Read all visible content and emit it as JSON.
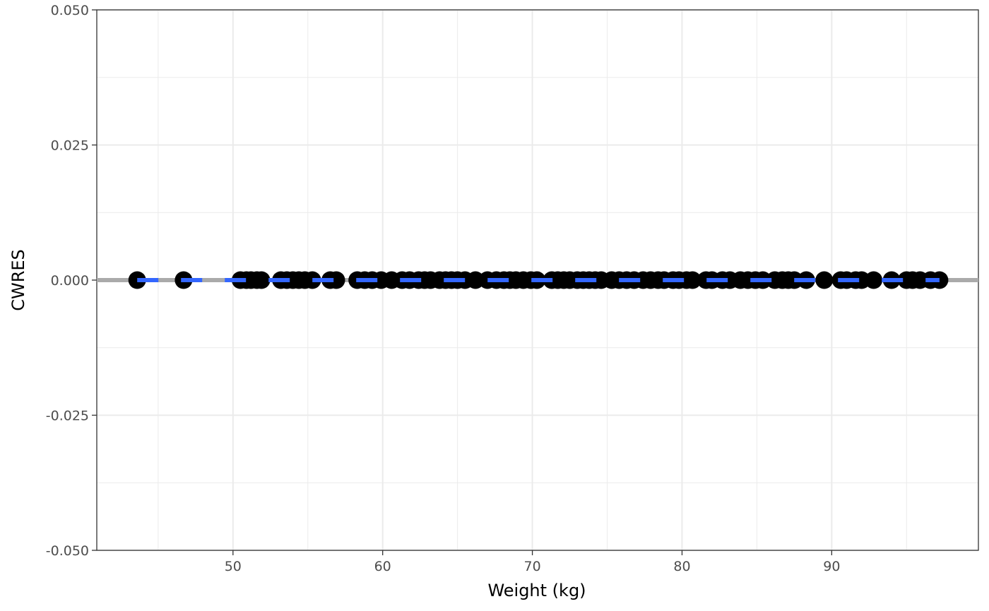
{
  "chart_data": {
    "type": "scatter",
    "xlabel": "Weight (kg)",
    "ylabel": "CWRES",
    "xlim": [
      40.9,
      99.8
    ],
    "ylim": [
      -0.05,
      0.05
    ],
    "x_ticks": [
      50,
      60,
      70,
      80,
      90
    ],
    "x_minor_ticks": [
      45,
      55,
      65,
      75,
      85,
      95
    ],
    "y_ticks": [
      -0.05,
      -0.025,
      0.0,
      0.025,
      0.05
    ],
    "y_tick_labels": [
      "-0.050",
      "-0.025",
      "0.000",
      "0.025",
      "0.050"
    ],
    "y_minor_ticks": [
      -0.0375,
      -0.0125,
      0.0125,
      0.0375
    ],
    "grid": true,
    "reference_line": {
      "y": 0,
      "color": "#aaaaaa"
    },
    "smooth_line": {
      "y": 0,
      "color": "#3366ff",
      "style": "dashed"
    },
    "point_color": "#000000",
    "x": [
      43.6,
      46.7,
      50.5,
      50.9,
      51.2,
      51.6,
      51.9,
      53.2,
      53.6,
      54.0,
      54.4,
      54.8,
      55.3,
      56.5,
      56.9,
      58.3,
      58.8,
      59.3,
      59.9,
      60.6,
      61.3,
      61.8,
      62.4,
      62.8,
      63.2,
      63.8,
      64.2,
      64.6,
      65.0,
      65.5,
      66.2,
      67.0,
      67.6,
      68.1,
      68.5,
      68.9,
      69.4,
      69.9,
      70.3,
      71.3,
      71.7,
      72.1,
      72.5,
      73.0,
      73.4,
      73.8,
      74.2,
      74.6,
      75.3,
      75.8,
      76.3,
      76.8,
      77.4,
      77.9,
      78.4,
      78.8,
      79.4,
      79.8,
      80.3,
      80.7,
      81.6,
      82.0,
      82.7,
      83.2,
      83.9,
      84.4,
      84.9,
      85.4,
      86.2,
      86.7,
      87.1,
      87.5,
      88.3,
      89.5,
      90.6,
      91.0,
      91.6,
      92.0,
      92.8,
      94.0,
      95.0,
      95.4,
      95.9,
      96.6,
      97.2
    ],
    "y": [
      0,
      0,
      0,
      0,
      0,
      0,
      0,
      0,
      0,
      0,
      0,
      0,
      0,
      0,
      0,
      0,
      0,
      0,
      0,
      0,
      0,
      0,
      0,
      0,
      0,
      0,
      0,
      0,
      0,
      0,
      0,
      0,
      0,
      0,
      0,
      0,
      0,
      0,
      0,
      0,
      0,
      0,
      0,
      0,
      0,
      0,
      0,
      0,
      0,
      0,
      0,
      0,
      0,
      0,
      0,
      0,
      0,
      0,
      0,
      0,
      0,
      0,
      0,
      0,
      0,
      0,
      0,
      0,
      0,
      0,
      0,
      0,
      0,
      0,
      0,
      0,
      0,
      0,
      0,
      0,
      0,
      0,
      0,
      0,
      0
    ]
  }
}
